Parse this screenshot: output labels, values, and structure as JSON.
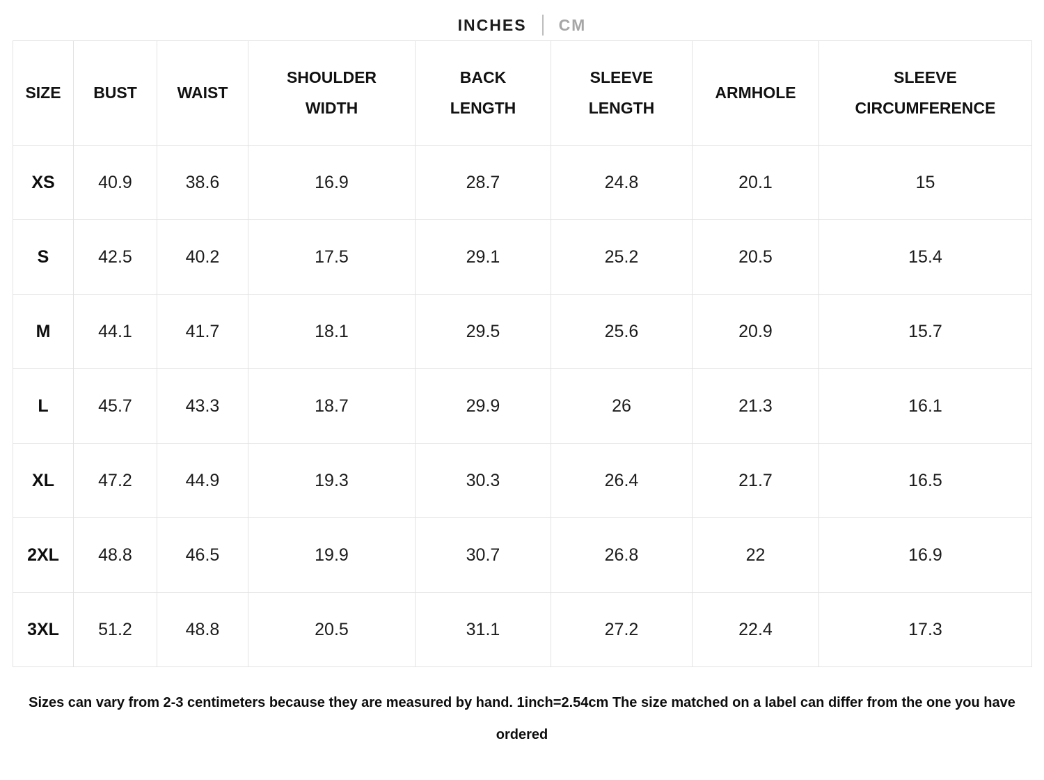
{
  "unit_toggle": {
    "inches_label": "INCHES",
    "cm_label": "CM",
    "selected": "INCHES"
  },
  "table": {
    "columns": [
      "SIZE",
      "BUST",
      "WAIST",
      "SHOULDER WIDTH",
      "BACK LENGTH",
      "SLEEVE LENGTH",
      "ARMHOLE",
      "SLEEVE CIRCUMFERENCE"
    ],
    "rows": [
      {
        "size": "XS",
        "values": [
          "40.9",
          "38.6",
          "16.9",
          "28.7",
          "24.8",
          "20.1",
          "15"
        ]
      },
      {
        "size": "S",
        "values": [
          "42.5",
          "40.2",
          "17.5",
          "29.1",
          "25.2",
          "20.5",
          "15.4"
        ]
      },
      {
        "size": "M",
        "values": [
          "44.1",
          "41.7",
          "18.1",
          "29.5",
          "25.6",
          "20.9",
          "15.7"
        ]
      },
      {
        "size": "L",
        "values": [
          "45.7",
          "43.3",
          "18.7",
          "29.9",
          "26",
          "21.3",
          "16.1"
        ]
      },
      {
        "size": "XL",
        "values": [
          "47.2",
          "44.9",
          "19.3",
          "30.3",
          "26.4",
          "21.7",
          "16.5"
        ]
      },
      {
        "size": "2XL",
        "values": [
          "48.8",
          "46.5",
          "19.9",
          "30.7",
          "26.8",
          "22",
          "16.9"
        ]
      },
      {
        "size": "3XL",
        "values": [
          "51.2",
          "48.8",
          "20.5",
          "31.1",
          "27.2",
          "22.4",
          "17.3"
        ]
      }
    ]
  },
  "footer": {
    "note": "Sizes can vary from 2-3 centimeters because they are measured by hand. 1inch=2.54cm The size matched on a label can differ from the one you have ordered"
  }
}
